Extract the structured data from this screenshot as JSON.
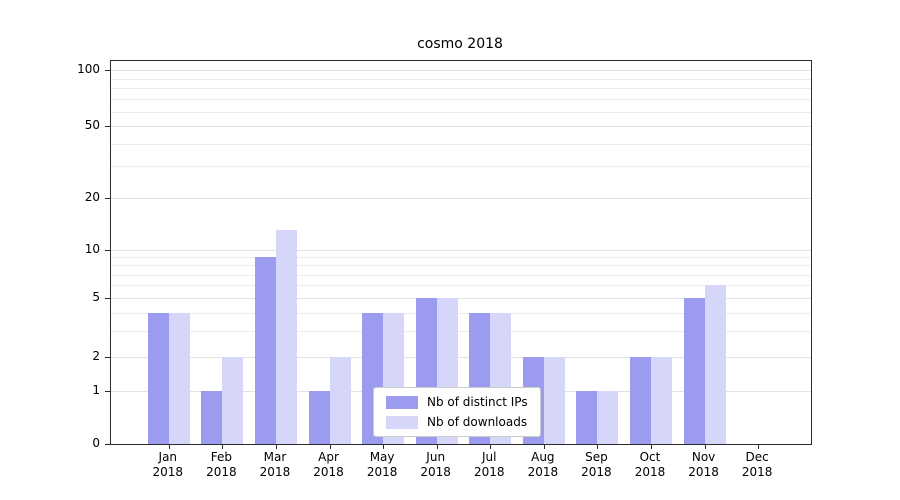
{
  "chart_data": {
    "type": "bar",
    "title": "cosmo 2018",
    "categories": [
      "Jan",
      "Feb",
      "Mar",
      "Apr",
      "May",
      "Jun",
      "Jul",
      "Aug",
      "Sep",
      "Oct",
      "Nov",
      "Dec"
    ],
    "year": "2018",
    "series": [
      {
        "name": "Nb of distinct IPs",
        "color": "#9b9bef",
        "values": [
          4,
          1,
          9,
          1,
          4,
          5,
          4,
          2,
          1,
          2,
          5,
          0
        ]
      },
      {
        "name": "Nb of downloads",
        "color": "#d6d6fa",
        "values": [
          4,
          2,
          13,
          2,
          4,
          5,
          4,
          2,
          1,
          2,
          6,
          0
        ]
      }
    ],
    "yticks": [
      0,
      1,
      2,
      5,
      10,
      20,
      50,
      100
    ],
    "yscale": "symlog",
    "ylim": [
      0,
      110
    ],
    "grid": "horizontal",
    "legend_position": "lower-center"
  }
}
